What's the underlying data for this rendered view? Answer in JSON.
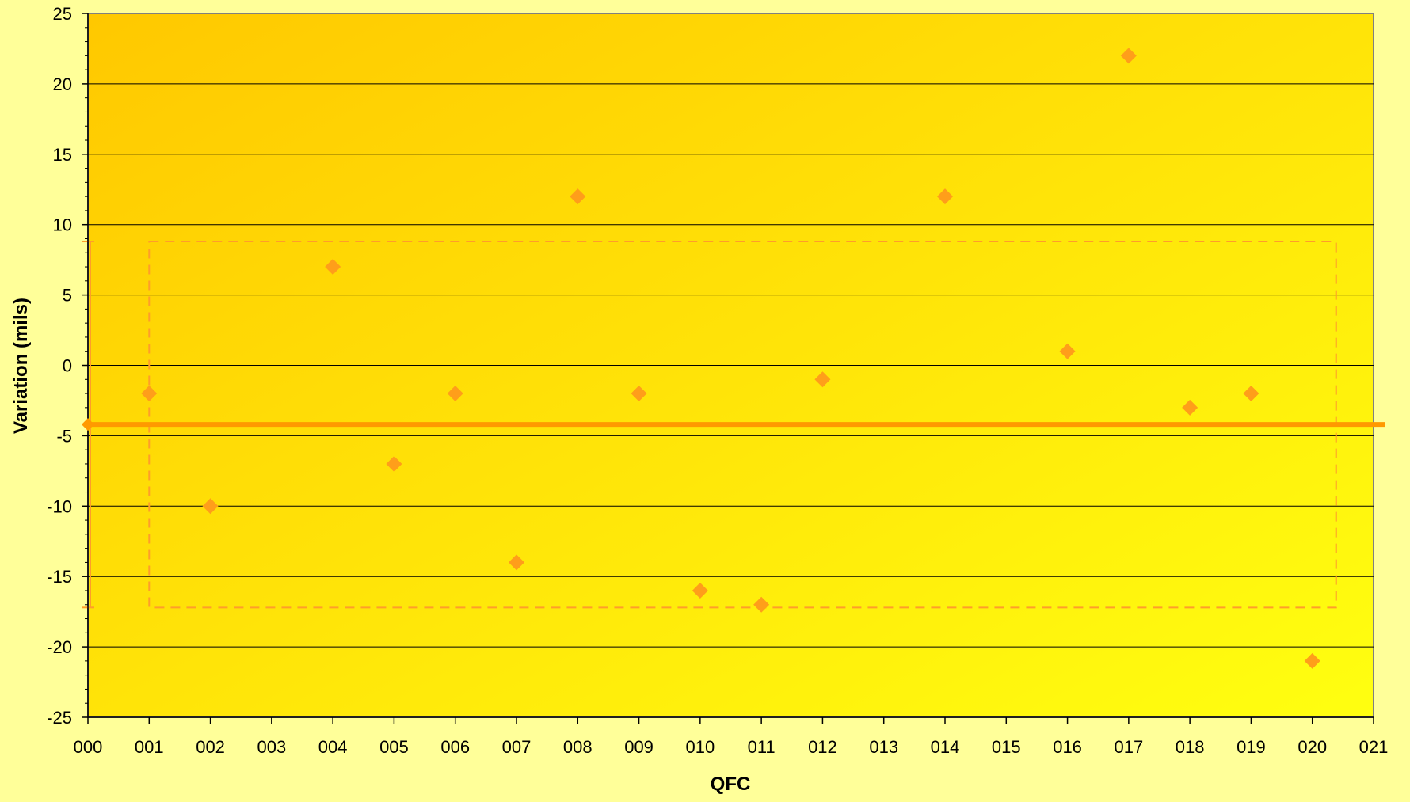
{
  "chart_data": {
    "type": "scatter",
    "title": "",
    "xlabel": "QFC",
    "ylabel": "Variation (mils)",
    "categories": [
      "000",
      "001",
      "002",
      "003",
      "004",
      "005",
      "006",
      "007",
      "008",
      "009",
      "010",
      "011",
      "012",
      "013",
      "014",
      "015",
      "016",
      "017",
      "018",
      "019",
      "020",
      "021"
    ],
    "ylim": [
      -25,
      25
    ],
    "ytick_step": 5,
    "grid": true,
    "legend": "none",
    "series": [
      {
        "points": [
          {
            "x": "001",
            "y": -2
          },
          {
            "x": "002",
            "y": -10
          },
          {
            "x": "004",
            "y": 7
          },
          {
            "x": "005",
            "y": -7
          },
          {
            "x": "006",
            "y": -2
          },
          {
            "x": "007",
            "y": -14
          },
          {
            "x": "008",
            "y": 12
          },
          {
            "x": "009",
            "y": -2
          },
          {
            "x": "010",
            "y": -16
          },
          {
            "x": "011",
            "y": -17
          },
          {
            "x": "012",
            "y": -1
          },
          {
            "x": "014",
            "y": 12
          },
          {
            "x": "016",
            "y": 1
          },
          {
            "x": "017",
            "y": 22
          },
          {
            "x": "018",
            "y": -3
          },
          {
            "x": "019",
            "y": -2
          },
          {
            "x": "020",
            "y": -21
          }
        ]
      }
    ],
    "mean_line": -4.2,
    "control_band": {
      "upper": 8.8,
      "lower": -17.2,
      "x_start": "001",
      "x_end": "020"
    },
    "colors": {
      "page_background": "#ffff99",
      "plot_gradient_start": "#ffc800",
      "plot_gradient_end": "#ffff10",
      "marker": "#ff9e1a",
      "mean_line": "#ff9900",
      "band": "#ff9d2a",
      "grid": "#000000"
    }
  }
}
